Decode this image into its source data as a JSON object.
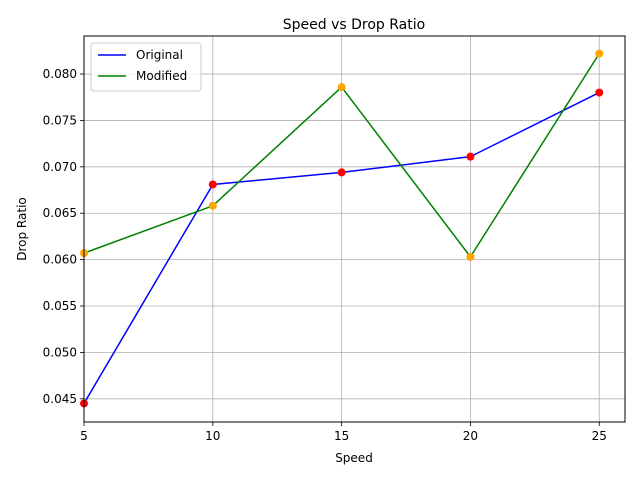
{
  "chart_data": {
    "type": "line",
    "title": "Speed vs Drop Ratio",
    "xlabel": "Speed",
    "ylabel": "Drop Ratio",
    "xlim": [
      5,
      26
    ],
    "ylim": [
      0.0425,
      0.0841
    ],
    "xticks": [
      "5",
      "10",
      "15",
      "20",
      "25"
    ],
    "yticks": [
      "0.045",
      "0.050",
      "0.055",
      "0.060",
      "0.065",
      "0.070",
      "0.075",
      "0.080"
    ],
    "grid": true,
    "legend_position": "top-left",
    "x": [
      5,
      10,
      15,
      20,
      25
    ],
    "series": [
      {
        "name": "Original",
        "values": [
          0.0445,
          0.0681,
          0.0694,
          0.0711,
          0.078
        ],
        "line_color": "#0000ff",
        "marker_color": "#ff0000"
      },
      {
        "name": "Modified",
        "values": [
          0.0607,
          0.0658,
          0.0786,
          0.0603,
          0.0822
        ],
        "line_color": "#008000",
        "marker_color": "#ffa500"
      }
    ]
  }
}
